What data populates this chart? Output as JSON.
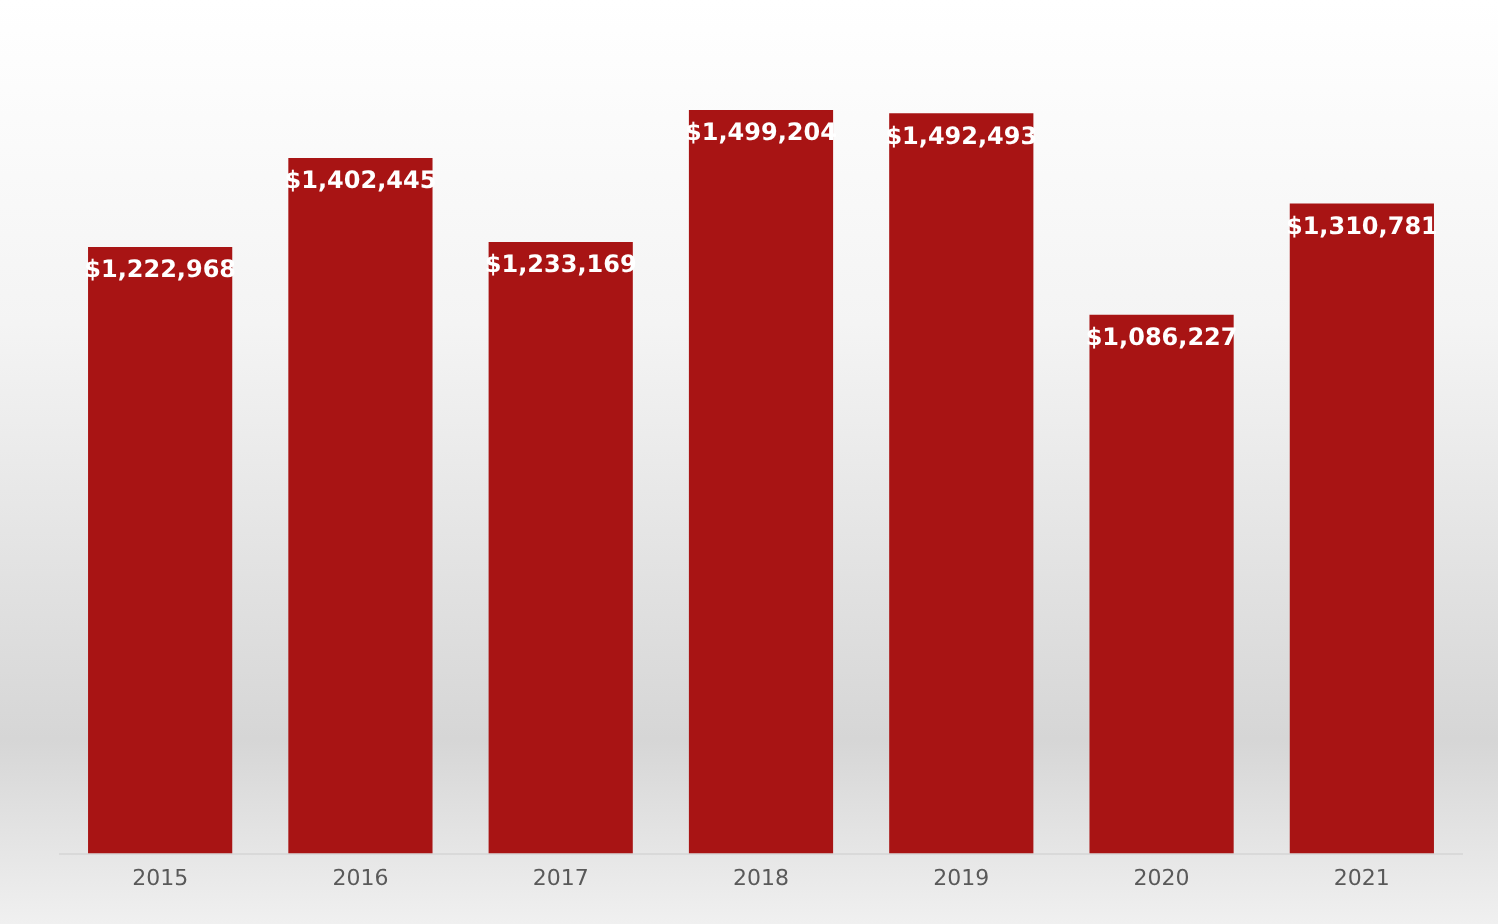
{
  "chart_data": {
    "type": "bar",
    "categories": [
      "2015",
      "2016",
      "2017",
      "2018",
      "2019",
      "2020",
      "2021"
    ],
    "values": [
      1222968,
      1402445,
      1233169,
      1499204,
      1492493,
      1086227,
      1310781
    ],
    "value_labels": [
      "$1,222,968",
      "$1,402,445",
      "$1,233,169",
      "$1,499,204",
      "$1,492,493",
      "$1,086,227",
      "$1,310,781"
    ],
    "color": "#a81414",
    "grid": false,
    "legend": false
  }
}
